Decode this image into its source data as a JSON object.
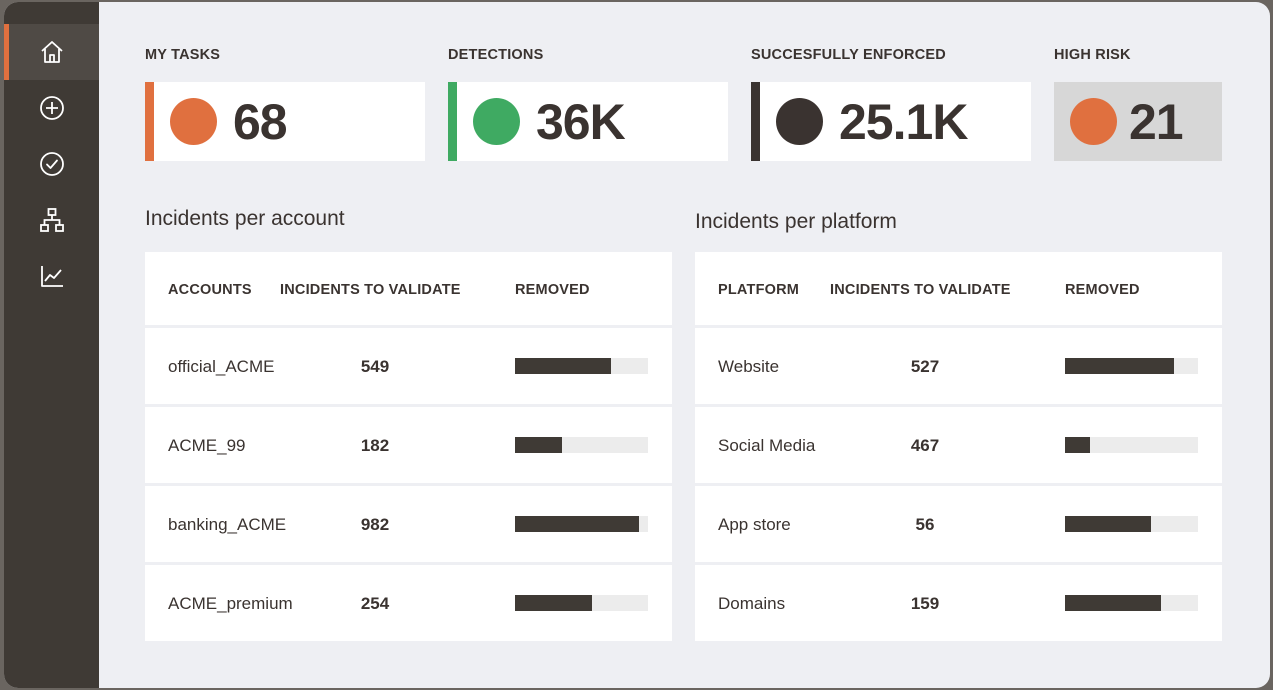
{
  "sidebar": {
    "items": [
      {
        "icon": "home-icon",
        "active": true
      },
      {
        "icon": "plus-circle-icon",
        "active": false
      },
      {
        "icon": "check-circle-icon",
        "active": false
      },
      {
        "icon": "hierarchy-icon",
        "active": false
      },
      {
        "icon": "line-chart-icon",
        "active": false
      }
    ]
  },
  "kpis": [
    {
      "label": "MY TASKS",
      "value": "68",
      "color": "#e0703f"
    },
    {
      "label": "DETECTIONS",
      "value": "36K",
      "color": "#3faa62"
    },
    {
      "label": "SUCCESFULLY ENFORCED",
      "value": "25.1K",
      "color": "#3a3330"
    },
    {
      "label": "HIGH RISK",
      "value": "21",
      "color": "#e0703f"
    }
  ],
  "accounts": {
    "title": "Incidents per account",
    "headers": [
      "ACCOUNTS",
      "INCIDENTS TO VALIDATE",
      "REMOVED"
    ],
    "rows": [
      {
        "name": "official_ACME",
        "count": "549",
        "removed": 0.72
      },
      {
        "name": "ACME_99",
        "count": "182",
        "removed": 0.35
      },
      {
        "name": "banking_ACME",
        "count": "982",
        "removed": 0.93
      },
      {
        "name": "ACME_premium",
        "count": "254",
        "removed": 0.58
      }
    ]
  },
  "platforms": {
    "title": "Incidents per platform",
    "headers": [
      "PLATFORM",
      "INCIDENTS TO VALIDATE",
      "REMOVED"
    ],
    "rows": [
      {
        "name": "Website",
        "count": "527",
        "removed": 0.82
      },
      {
        "name": "Social Media",
        "count": "467",
        "removed": 0.19
      },
      {
        "name": "App store",
        "count": "56",
        "removed": 0.65
      },
      {
        "name": "Domains",
        "count": "159",
        "removed": 0.72
      }
    ]
  }
}
